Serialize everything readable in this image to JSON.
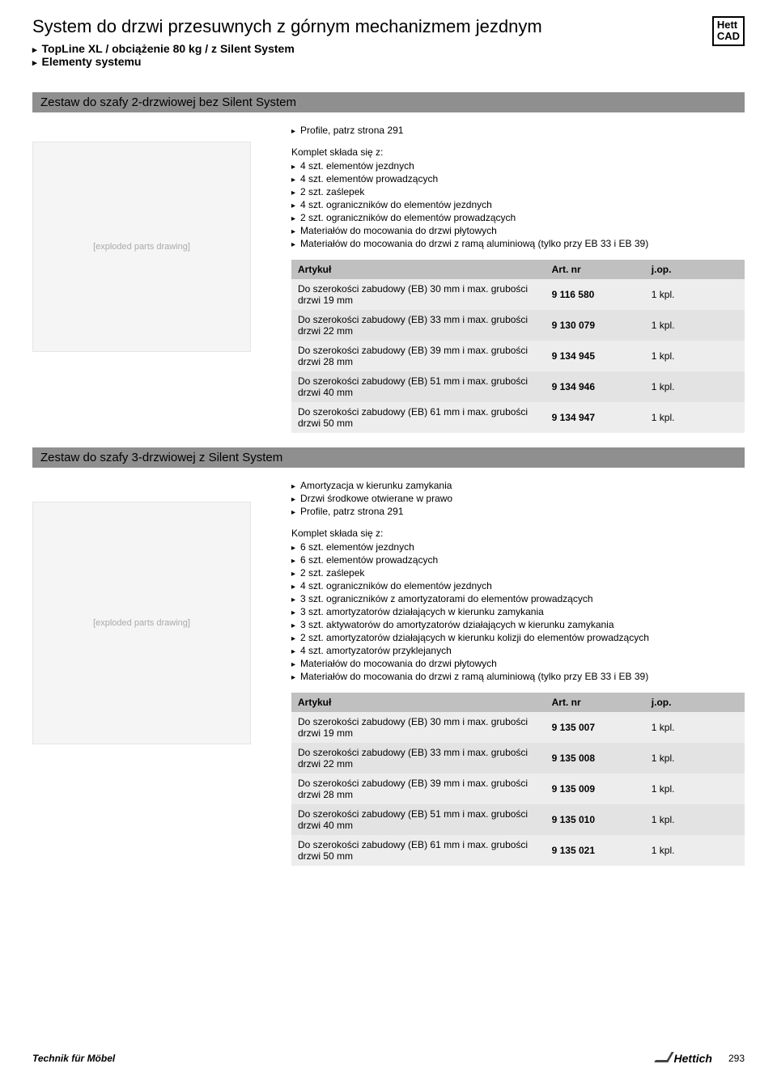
{
  "header": {
    "title": "System do drzwi przesuwnych z górnym mechanizmem jezdnym",
    "subtitle1": "TopLine XL / obciążenie 80 kg / z Silent System",
    "subtitle2": "Elementy systemu",
    "badge_line1": "Hett",
    "badge_line2": "CAD"
  },
  "section1": {
    "bar": "Zestaw do szafy 2-drzwiowej bez Silent System",
    "intro_items": [
      "Profile, patrz strona 291"
    ],
    "komplet_label": "Komplet składa się z:",
    "komplet_items": [
      "4 szt. elementów jezdnych",
      "4 szt. elementów prowadzących",
      "2 szt. zaślepek",
      "4 szt. ograniczników do elementów jezdnych",
      "2 szt. ograniczników do elementów prowadzących",
      "Materiałów do mocowania do drzwi płytowych",
      "Materiałów do mocowania do drzwi z ramą aluminiową (tylko przy EB 33 i EB 39)"
    ],
    "table_headers": {
      "c1": "Artykuł",
      "c2": "Art. nr",
      "c3": "j.op."
    },
    "rows": [
      {
        "art": "Do szerokości zabudowy (EB) 30 mm i max. grubości drzwi 19 mm",
        "nr": "9 116 580",
        "jop": "1 kpl."
      },
      {
        "art": "Do szerokości zabudowy (EB) 33 mm i max. grubości drzwi 22 mm",
        "nr": "9 130 079",
        "jop": "1 kpl."
      },
      {
        "art": "Do szerokości zabudowy (EB) 39 mm i max. grubości drzwi 28 mm",
        "nr": "9 134 945",
        "jop": "1 kpl."
      },
      {
        "art": "Do szerokości zabudowy (EB) 51 mm i max. grubości drzwi 40 mm",
        "nr": "9 134 946",
        "jop": "1 kpl."
      },
      {
        "art": "Do szerokości zabudowy (EB) 61 mm i max. grubości drzwi 50 mm",
        "nr": "9 134 947",
        "jop": "1 kpl."
      }
    ]
  },
  "section2": {
    "bar": "Zestaw do szafy 3-drzwiowej z Silent System",
    "intro_items": [
      "Amortyzacja w kierunku zamykania",
      "Drzwi środkowe otwierane w prawo",
      "Profile, patrz strona 291"
    ],
    "komplet_label": "Komplet składa się z:",
    "komplet_items": [
      "6 szt. elementów jezdnych",
      "6 szt. elementów prowadzących",
      "2 szt. zaślepek",
      "4 szt. ograniczników do elementów jezdnych",
      "3 szt. ograniczników z amortyzatorami do elementów prowadzących",
      "3 szt. amortyzatorów działających w kierunku zamykania",
      "3 szt. aktywatorów do amortyzatorów działających w kierunku zamykania",
      "2 szt. amortyzatorów działających w kierunku kolizji do elementów prowadzących",
      "4 szt. amortyzatorów przyklejanych",
      "Materiałów do mocowania do drzwi płytowych",
      "Materiałów do mocowania do drzwi z ramą aluminiową (tylko przy EB 33 i EB 39)"
    ],
    "table_headers": {
      "c1": "Artykuł",
      "c2": "Art. nr",
      "c3": "j.op."
    },
    "rows": [
      {
        "art": "Do szerokości zabudowy (EB) 30 mm i max. grubości drzwi 19 mm",
        "nr": "9 135 007",
        "jop": "1 kpl."
      },
      {
        "art": "Do szerokości zabudowy (EB) 33 mm i max. grubości drzwi 22 mm",
        "nr": "9 135 008",
        "jop": "1 kpl."
      },
      {
        "art": "Do szerokości zabudowy (EB) 39 mm i max. grubości drzwi 28 mm",
        "nr": "9 135 009",
        "jop": "1 kpl."
      },
      {
        "art": "Do szerokości zabudowy (EB) 51 mm i max. grubości drzwi 40 mm",
        "nr": "9 135 010",
        "jop": "1 kpl."
      },
      {
        "art": "Do szerokości zabudowy (EB) 61 mm i max. grubości drzwi 50 mm",
        "nr": "9 135 021",
        "jop": "1 kpl."
      }
    ]
  },
  "footer": {
    "left": "Technik für Möbel",
    "brand": "Hettich",
    "page": "293"
  },
  "image_placeholder_text": "[exploded parts drawing]",
  "colors": {
    "section_bar": "#8f8f8f",
    "th_bg": "#c0c0c0",
    "td_bg": "#ededed",
    "td_alt_bg": "#e3e3e3"
  }
}
